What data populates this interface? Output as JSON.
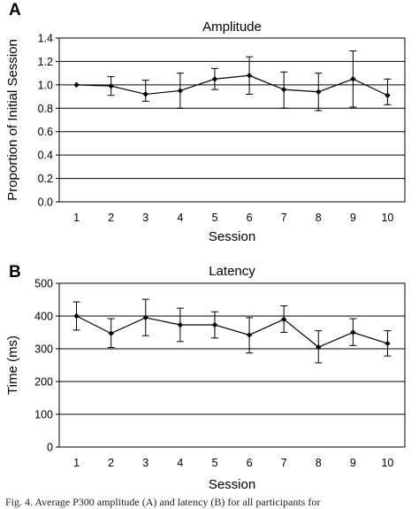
{
  "chart_data": [
    {
      "type": "line",
      "panel_label": "A",
      "title": "Amplitude",
      "xlabel": "Session",
      "ylabel": "Proportion of Initial Session",
      "x": [
        1,
        2,
        3,
        4,
        5,
        6,
        7,
        8,
        9,
        10
      ],
      "x_tick_labels": [
        "1",
        "2",
        "3",
        "4",
        "5",
        "6",
        "7",
        "8",
        "9",
        "10"
      ],
      "xlim": [
        0.5,
        10.5
      ],
      "ylim": [
        0,
        1.4
      ],
      "y_ticks": [
        0.0,
        0.2,
        0.4,
        0.6,
        0.8,
        1.0,
        1.2,
        1.4
      ],
      "y_tick_labels": [
        "0.0",
        "0.2",
        "0.4",
        "0.6",
        "0.8",
        "1.0",
        "1.2",
        "1.4"
      ],
      "grid": "horizontal",
      "series": [
        {
          "values": [
            1.0,
            0.99,
            0.92,
            0.95,
            1.05,
            1.08,
            0.96,
            0.94,
            1.05,
            0.91
          ],
          "error_upper": [
            1.0,
            1.07,
            1.04,
            1.1,
            1.14,
            1.24,
            1.11,
            1.1,
            1.29,
            1.05
          ],
          "error_lower": [
            1.0,
            0.91,
            0.86,
            0.8,
            0.96,
            0.92,
            0.8,
            0.78,
            0.81,
            0.83
          ]
        }
      ]
    },
    {
      "type": "line",
      "panel_label": "B",
      "title": "Latency",
      "xlabel": "Session",
      "ylabel": "Time (ms)",
      "x": [
        1,
        2,
        3,
        4,
        5,
        6,
        7,
        8,
        9,
        10
      ],
      "x_tick_labels": [
        "1",
        "2",
        "3",
        "4",
        "5",
        "6",
        "7",
        "8",
        "9",
        "10"
      ],
      "xlim": [
        0.5,
        10.5
      ],
      "ylim": [
        0,
        500
      ],
      "y_ticks": [
        0,
        100,
        200,
        300,
        400,
        500
      ],
      "y_tick_labels": [
        "0",
        "100",
        "200",
        "300",
        "400",
        "500"
      ],
      "grid": "horizontal",
      "series": [
        {
          "values": [
            400,
            347,
            395,
            373,
            373,
            342,
            390,
            305,
            350,
            316
          ],
          "error_upper": [
            443,
            392,
            451,
            424,
            413,
            395,
            431,
            355,
            392,
            355
          ],
          "error_lower": [
            357,
            304,
            340,
            322,
            333,
            287,
            350,
            257,
            310,
            278
          ]
        }
      ]
    }
  ],
  "caption": "Fig. 4.  Average P300 amplitude (A) and latency (B) for all participants for"
}
